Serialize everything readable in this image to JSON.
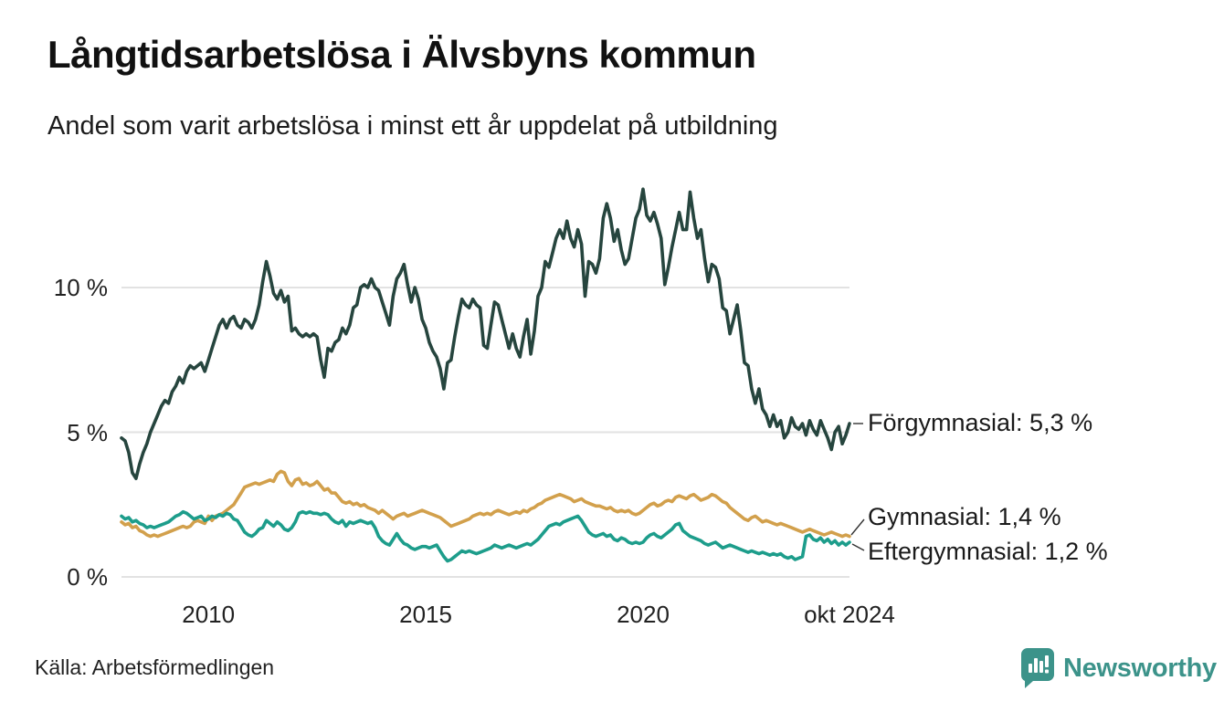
{
  "header": {
    "title": "Långtidsarbetslösa i Älvsbyns kommun",
    "subtitle": "Andel som varit arbetslösa i minst ett år uppdelat på utbildning"
  },
  "chart_data": {
    "type": "line",
    "title": "Långtidsarbetslösa i Älvsbyns kommun",
    "subtitle": "Andel som varit arbetslösa i minst ett år uppdelat på utbildning",
    "x_unit": "month",
    "x_start": "2008-01",
    "x_end": "2024-10",
    "ylim": [
      0,
      13.5
    ],
    "grid": "horizontal",
    "gridline_color": "#e2e2e2",
    "yticks": [
      {
        "value": 0,
        "label": "0 %"
      },
      {
        "value": 5,
        "label": "5 %"
      },
      {
        "value": 10,
        "label": "10 %"
      }
    ],
    "xticks": [
      {
        "index": 24,
        "label": "2010"
      },
      {
        "index": 84,
        "label": "2015"
      },
      {
        "index": 144,
        "label": "2020"
      },
      {
        "index": 201,
        "label": "okt 2024"
      }
    ],
    "series": [
      {
        "name": "Förgymnasial",
        "color": "#26453e",
        "latest_value": "5,3 %",
        "values": [
          4.8,
          4.7,
          4.3,
          3.6,
          3.4,
          3.9,
          4.3,
          4.6,
          5.0,
          5.3,
          5.6,
          5.9,
          6.1,
          6.0,
          6.4,
          6.6,
          6.9,
          6.7,
          7.1,
          7.3,
          7.2,
          7.3,
          7.4,
          7.1,
          7.5,
          7.9,
          8.3,
          8.7,
          8.9,
          8.6,
          8.9,
          9.0,
          8.7,
          8.6,
          8.9,
          8.8,
          8.6,
          8.9,
          9.4,
          10.2,
          10.9,
          10.4,
          9.8,
          9.6,
          9.9,
          9.5,
          9.7,
          8.5,
          8.6,
          8.4,
          8.3,
          8.4,
          8.3,
          8.4,
          8.3,
          7.5,
          6.9,
          7.9,
          7.8,
          8.1,
          8.2,
          8.6,
          8.4,
          8.7,
          9.3,
          9.4,
          10.0,
          10.1,
          10.0,
          10.3,
          10.0,
          9.9,
          9.5,
          9.1,
          8.7,
          9.7,
          10.3,
          10.5,
          10.8,
          10.1,
          9.5,
          10.0,
          9.6,
          8.9,
          8.6,
          8.1,
          7.8,
          7.6,
          7.2,
          6.5,
          7.4,
          7.5,
          8.3,
          9.0,
          9.6,
          9.4,
          9.3,
          9.6,
          9.4,
          9.3,
          8.0,
          7.9,
          8.7,
          9.5,
          9.4,
          8.9,
          8.4,
          7.9,
          8.4,
          7.9,
          7.6,
          8.3,
          8.9,
          7.7,
          8.5,
          9.7,
          10.0,
          10.9,
          10.7,
          11.2,
          11.7,
          12.0,
          11.7,
          12.3,
          11.7,
          11.4,
          12.0,
          11.5,
          9.7,
          10.9,
          10.8,
          10.5,
          11.0,
          12.4,
          12.9,
          12.4,
          11.6,
          12.0,
          11.3,
          10.8,
          11.0,
          11.7,
          12.4,
          12.7,
          13.4,
          12.5,
          12.3,
          12.6,
          12.2,
          11.7,
          10.1,
          10.7,
          11.4,
          12.0,
          12.6,
          12.0,
          12.0,
          13.3,
          12.4,
          11.7,
          12.0,
          11.0,
          10.2,
          10.8,
          10.7,
          10.3,
          9.3,
          9.2,
          8.4,
          8.9,
          9.4,
          8.5,
          7.4,
          7.3,
          6.5,
          6.0,
          6.5,
          5.8,
          5.6,
          5.2,
          5.6,
          5.2,
          5.4,
          4.8,
          5.0,
          5.5,
          5.2,
          5.1,
          5.3,
          4.9,
          5.4,
          5.1,
          4.9,
          5.4,
          5.1,
          4.8,
          4.4,
          5.0,
          5.2,
          4.6,
          4.9,
          5.3
        ]
      },
      {
        "name": "Gymnasial",
        "color": "#d2a04c",
        "latest_value": "1,4 %",
        "values": [
          1.9,
          1.8,
          1.85,
          1.7,
          1.75,
          1.6,
          1.55,
          1.45,
          1.4,
          1.45,
          1.4,
          1.45,
          1.5,
          1.55,
          1.6,
          1.65,
          1.7,
          1.75,
          1.7,
          1.75,
          1.9,
          1.95,
          1.9,
          1.85,
          2.1,
          1.95,
          2.1,
          2.15,
          2.2,
          2.3,
          2.4,
          2.5,
          2.7,
          2.9,
          3.1,
          3.15,
          3.2,
          3.25,
          3.2,
          3.25,
          3.3,
          3.35,
          3.3,
          3.55,
          3.65,
          3.6,
          3.3,
          3.15,
          3.35,
          3.4,
          3.2,
          3.25,
          3.15,
          3.2,
          3.3,
          3.15,
          3.0,
          3.05,
          2.9,
          2.9,
          2.75,
          2.6,
          2.55,
          2.6,
          2.5,
          2.55,
          2.45,
          2.5,
          2.4,
          2.35,
          2.3,
          2.2,
          2.3,
          2.2,
          2.1,
          2.0,
          2.1,
          2.15,
          2.2,
          2.1,
          2.15,
          2.2,
          2.25,
          2.3,
          2.25,
          2.2,
          2.15,
          2.1,
          2.05,
          1.95,
          1.85,
          1.75,
          1.8,
          1.85,
          1.9,
          1.95,
          2.0,
          2.1,
          2.15,
          2.2,
          2.15,
          2.2,
          2.15,
          2.25,
          2.3,
          2.25,
          2.2,
          2.15,
          2.2,
          2.25,
          2.2,
          2.3,
          2.25,
          2.35,
          2.4,
          2.5,
          2.55,
          2.65,
          2.7,
          2.75,
          2.8,
          2.85,
          2.8,
          2.75,
          2.7,
          2.6,
          2.65,
          2.7,
          2.6,
          2.55,
          2.5,
          2.45,
          2.45,
          2.4,
          2.35,
          2.4,
          2.3,
          2.25,
          2.3,
          2.25,
          2.3,
          2.2,
          2.15,
          2.2,
          2.3,
          2.4,
          2.5,
          2.55,
          2.45,
          2.5,
          2.6,
          2.65,
          2.6,
          2.75,
          2.8,
          2.75,
          2.7,
          2.8,
          2.85,
          2.75,
          2.65,
          2.7,
          2.75,
          2.85,
          2.8,
          2.7,
          2.6,
          2.55,
          2.4,
          2.3,
          2.2,
          2.1,
          2.0,
          1.95,
          2.05,
          2.1,
          2.0,
          1.9,
          1.95,
          1.9,
          1.85,
          1.8,
          1.85,
          1.8,
          1.75,
          1.7,
          1.65,
          1.6,
          1.55,
          1.6,
          1.65,
          1.6,
          1.55,
          1.5,
          1.45,
          1.5,
          1.55,
          1.5,
          1.45,
          1.4,
          1.45,
          1.4
        ]
      },
      {
        "name": "Eftergymnasial",
        "color": "#1d9d8b",
        "latest_value": "1,2 %",
        "values": [
          2.1,
          2.0,
          2.05,
          1.9,
          1.95,
          1.85,
          1.8,
          1.7,
          1.75,
          1.7,
          1.75,
          1.8,
          1.85,
          1.9,
          2.0,
          2.1,
          2.15,
          2.25,
          2.2,
          2.1,
          2.0,
          2.05,
          2.1,
          1.95,
          2.0,
          2.1,
          2.05,
          2.15,
          2.1,
          2.2,
          2.15,
          2.0,
          1.95,
          1.75,
          1.55,
          1.45,
          1.4,
          1.5,
          1.65,
          1.7,
          1.95,
          1.85,
          1.75,
          1.9,
          1.8,
          1.65,
          1.6,
          1.7,
          1.9,
          2.2,
          2.25,
          2.2,
          2.25,
          2.2,
          2.2,
          2.15,
          2.2,
          2.15,
          2.0,
          1.9,
          1.85,
          1.95,
          1.75,
          1.9,
          1.85,
          1.9,
          1.95,
          1.9,
          1.85,
          1.9,
          1.7,
          1.4,
          1.25,
          1.15,
          1.1,
          1.3,
          1.5,
          1.3,
          1.15,
          1.1,
          1.0,
          0.95,
          1.0,
          1.05,
          1.05,
          1.0,
          1.05,
          1.1,
          0.9,
          0.7,
          0.55,
          0.6,
          0.7,
          0.8,
          0.9,
          0.85,
          0.9,
          0.85,
          0.8,
          0.85,
          0.9,
          0.95,
          1.0,
          1.1,
          1.05,
          1.0,
          1.05,
          1.1,
          1.05,
          1.0,
          1.05,
          1.1,
          1.15,
          1.1,
          1.2,
          1.3,
          1.45,
          1.6,
          1.75,
          1.8,
          1.85,
          1.8,
          1.9,
          1.95,
          2.0,
          2.05,
          2.1,
          1.95,
          1.75,
          1.55,
          1.45,
          1.4,
          1.45,
          1.5,
          1.4,
          1.45,
          1.3,
          1.25,
          1.35,
          1.3,
          1.2,
          1.15,
          1.2,
          1.15,
          1.2,
          1.35,
          1.45,
          1.5,
          1.4,
          1.35,
          1.45,
          1.55,
          1.65,
          1.8,
          1.85,
          1.6,
          1.5,
          1.4,
          1.35,
          1.3,
          1.25,
          1.15,
          1.1,
          1.15,
          1.2,
          1.1,
          1.0,
          1.05,
          1.1,
          1.05,
          1.0,
          0.95,
          0.9,
          0.85,
          0.9,
          0.85,
          0.8,
          0.85,
          0.8,
          0.75,
          0.8,
          0.75,
          0.8,
          0.7,
          0.65,
          0.7,
          0.6,
          0.65,
          0.7,
          1.4,
          1.45,
          1.3,
          1.25,
          1.35,
          1.2,
          1.3,
          1.15,
          1.25,
          1.1,
          1.2,
          1.1,
          1.2
        ]
      }
    ],
    "legend_position": "end-of-line-labels"
  },
  "annotations": {
    "forgymnasial": "Förgymnasial: 5,3 %",
    "gymnasial": "Gymnasial: 1,4 %",
    "eftergymnasial": "Eftergymnasial: 1,2 %"
  },
  "footer": {
    "source": "Källa: Arbetsförmedlingen",
    "brand": "Newsworthy",
    "brand_color": "#3c938a"
  }
}
